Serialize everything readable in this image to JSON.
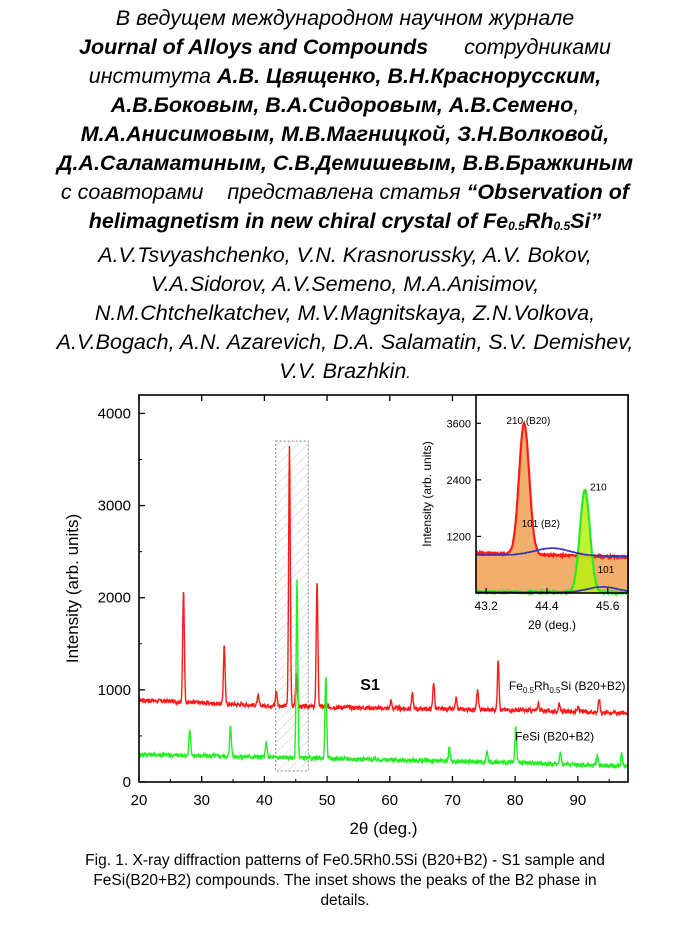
{
  "heading": {
    "line1": "В ведущем международном научном журнале",
    "journal": "Journal of Alloys and Compounds",
    "by_staff": "сотрудниками",
    "institute": "института",
    "ru_authors_1": "А.В. Цвященко, В.Н.Краснорусским,",
    "ru_authors_2": "А.В.Боковым, В.А.Сидоровым, А.В.Семено",
    "comma": ",",
    "ru_authors_3": "М.А.Анисимовым, М.В.Магницкой, З.Н.Волковой,",
    "ru_authors_4": "Д.А.Саламатиным, С.В.Демишевым, В.В.Бражкиным",
    "with_coauthors": "с соавторами",
    "presented": "представлена статья",
    "title_start": "“Observation of",
    "title_mid": "helimagnetism in new chiral crystal of Fe",
    "title_sub1": "0.5",
    "title_rh": "Rh",
    "title_sub2": "0.5",
    "title_end": "Si”",
    "en_authors_1": "A.V.Tsvyashchenko, V.N. Krasnorussky, A.V. Bokov,",
    "en_authors_2": "V.A.Sidorov, A.V.Semeno, M.A.Anisimov,",
    "en_authors_3": "N.M.Chtchelkatchev, M.V.Magnitskaya, Z.N.Volkova,",
    "en_authors_4": "A.V.Bogach, A.N. Azarevich, D.A. Salamatin, S.V. Demishev,",
    "en_authors_5": "V.V. Brazhkin",
    "period": "."
  },
  "chart_data": [
    {
      "type": "line",
      "xlabel": "2θ (deg.)",
      "ylabel": "Intensity (arb. units)",
      "xlim": [
        20,
        98
      ],
      "ylim": [
        0,
        4200
      ],
      "xticks": [
        20,
        30,
        40,
        50,
        60,
        70,
        80,
        90
      ],
      "yticks": [
        0,
        1000,
        2000,
        3000,
        4000
      ],
      "annotation": "S1",
      "highlight_region_x": [
        41.8,
        47.0
      ],
      "series": [
        {
          "name": "Fe0.5Rh0.5Si (B20+B2)",
          "label_base": "Fe",
          "label_sub1": "0.5",
          "label_mid": "Rh",
          "label_sub2": "0.5",
          "label_end": "Si (B20+B2)",
          "color": "#ff1a1a",
          "baseline": [
            [
              20,
              890
            ],
            [
              40,
              830
            ],
            [
              60,
              800
            ],
            [
              80,
              780
            ],
            [
              98,
              750
            ]
          ],
          "peaks": [
            [
              27.1,
              2080
            ],
            [
              33.6,
              1490
            ],
            [
              39.0,
              930
            ],
            [
              41.9,
              990
            ],
            [
              44.0,
              3630
            ],
            [
              45.1,
              1200
            ],
            [
              48.4,
              2190
            ],
            [
              60.2,
              880
            ],
            [
              63.6,
              960
            ],
            [
              67.0,
              1090
            ],
            [
              70.6,
              900
            ],
            [
              74.0,
              1000
            ],
            [
              77.3,
              1330
            ],
            [
              83.7,
              860
            ],
            [
              87.0,
              840
            ],
            [
              90.1,
              820
            ],
            [
              93.4,
              900
            ]
          ]
        },
        {
          "name": "FeSi (B20+B2)",
          "label": "FeSi (B20+B2)",
          "color": "#22ee22",
          "baseline": [
            [
              20,
              300
            ],
            [
              40,
              270
            ],
            [
              60,
              240
            ],
            [
              80,
              210
            ],
            [
              98,
              170
            ]
          ],
          "peaks": [
            [
              28.1,
              560
            ],
            [
              34.6,
              620
            ],
            [
              40.3,
              430
            ],
            [
              45.2,
              2180
            ],
            [
              49.8,
              1170
            ],
            [
              69.5,
              380
            ],
            [
              75.5,
              340
            ],
            [
              80.1,
              590
            ],
            [
              87.2,
              330
            ],
            [
              93.1,
              300
            ],
            [
              97.0,
              310
            ]
          ]
        }
      ]
    },
    {
      "type": "line",
      "xlabel": "2θ (deg.)",
      "ylabel": "Intensity (arb. units)",
      "xlim": [
        43.0,
        46.0
      ],
      "ylim": [
        0,
        4200
      ],
      "xticks": [
        43.2,
        44.4,
        45.6
      ],
      "yticks": [
        1200,
        2400,
        3600
      ],
      "annotations": [
        {
          "text": "210 (B20)",
          "x": 43.6,
          "y": 3580
        },
        {
          "text": "101 (B2)",
          "x": 43.9,
          "y": 1400
        },
        {
          "text": "210",
          "x": 45.25,
          "y": 2170
        },
        {
          "text": "101",
          "x": 45.4,
          "y": 420
        }
      ],
      "series": [
        {
          "name": "Fe0.5Rh0.5Si",
          "color": "#ff1a1a",
          "fill": "#f0a050",
          "peak": [
            43.95,
            3600
          ],
          "width": 0.1,
          "baseline": [
            850,
            760
          ]
        },
        {
          "name": "FeSi",
          "color": "#22ee22",
          "fill": "#bbee11",
          "peak": [
            45.15,
            2170
          ],
          "width": 0.1,
          "baseline": [
            20,
            10
          ]
        },
        {
          "name": "B2 Fe0.5Rh0.5Si",
          "color": "#3333bb",
          "peak": [
            44.5,
            950
          ],
          "width": 0.35,
          "baseline": [
            810,
            780
          ]
        },
        {
          "name": "B2 FeSi",
          "color": "#3333bb",
          "peak": [
            45.5,
            130
          ],
          "width": 0.3,
          "baseline": [
            15,
            10
          ]
        }
      ]
    }
  ],
  "caption": {
    "line1": "Fig. 1. X-ray diffraction patterns of Fe0.5Rh0.5Si (B20+B2) - S1 sample and",
    "line2": "FeSi(B20+B2) compounds. The inset shows the peaks of the B2 phase in",
    "line3": "details."
  }
}
